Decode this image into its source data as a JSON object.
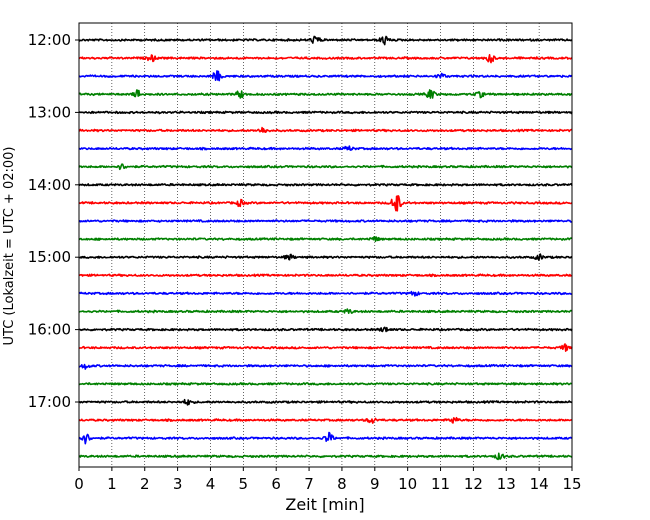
{
  "chart_data": {
    "type": "line",
    "title": "",
    "xlabel": "Zeit  [min]",
    "ylabel": "UTC (Lokalzeit = UTC + 02:00)",
    "xlim": [
      0,
      15
    ],
    "x_ticks": [
      0,
      1,
      2,
      3,
      4,
      5,
      6,
      7,
      8,
      9,
      10,
      11,
      12,
      13,
      14,
      15
    ],
    "x_grid": true,
    "y_ticks": [
      "12:00",
      "13:00",
      "14:00",
      "15:00",
      "16:00",
      "17:00"
    ],
    "trace_interval_min": 15,
    "color_cycle": [
      "#000000",
      "#ff0000",
      "#0000ff",
      "#008000"
    ],
    "traces": [
      {
        "start": "12:00",
        "color": "#000000",
        "events": [
          {
            "t": 7.2,
            "amp": 0.8
          },
          {
            "t": 9.3,
            "amp": 0.9
          }
        ]
      },
      {
        "start": "12:15",
        "color": "#ff0000",
        "events": [
          {
            "t": 2.2,
            "amp": 0.6
          },
          {
            "t": 12.5,
            "amp": 0.9
          }
        ]
      },
      {
        "start": "12:30",
        "color": "#0000ff",
        "events": [
          {
            "t": 4.2,
            "amp": 1.0
          },
          {
            "t": 11.0,
            "amp": 0.5
          }
        ]
      },
      {
        "start": "12:45",
        "color": "#008000",
        "events": [
          {
            "t": 1.8,
            "amp": 0.8
          },
          {
            "t": 4.9,
            "amp": 0.7
          },
          {
            "t": 10.7,
            "amp": 0.9
          },
          {
            "t": 12.2,
            "amp": 0.5
          }
        ]
      },
      {
        "start": "13:00",
        "color": "#000000",
        "events": []
      },
      {
        "start": "13:15",
        "color": "#ff0000",
        "events": [
          {
            "t": 5.6,
            "amp": 0.6
          }
        ]
      },
      {
        "start": "13:30",
        "color": "#0000ff",
        "events": [
          {
            "t": 8.2,
            "amp": 0.4
          }
        ]
      },
      {
        "start": "13:45",
        "color": "#008000",
        "events": [
          {
            "t": 1.3,
            "amp": 0.5
          }
        ]
      },
      {
        "start": "14:00",
        "color": "#000000",
        "events": []
      },
      {
        "start": "14:15",
        "color": "#ff0000",
        "events": [
          {
            "t": 9.65,
            "amp": 2.2
          },
          {
            "t": 4.9,
            "amp": 0.6
          }
        ]
      },
      {
        "start": "14:30",
        "color": "#0000ff",
        "events": []
      },
      {
        "start": "14:45",
        "color": "#008000",
        "events": [
          {
            "t": 9.0,
            "amp": 0.4
          }
        ]
      },
      {
        "start": "15:00",
        "color": "#000000",
        "events": [
          {
            "t": 6.4,
            "amp": 0.5
          },
          {
            "t": 14.0,
            "amp": 0.5
          }
        ]
      },
      {
        "start": "15:15",
        "color": "#ff0000",
        "events": []
      },
      {
        "start": "15:30",
        "color": "#0000ff",
        "events": [
          {
            "t": 10.2,
            "amp": 0.4
          }
        ]
      },
      {
        "start": "15:45",
        "color": "#008000",
        "events": [
          {
            "t": 8.2,
            "amp": 0.4
          }
        ]
      },
      {
        "start": "16:00",
        "color": "#000000",
        "events": [
          {
            "t": 9.3,
            "amp": 0.5
          }
        ]
      },
      {
        "start": "16:15",
        "color": "#ff0000",
        "events": [
          {
            "t": 14.8,
            "amp": 0.6
          }
        ]
      },
      {
        "start": "16:30",
        "color": "#0000ff",
        "events": [
          {
            "t": 0.2,
            "amp": 0.5
          }
        ]
      },
      {
        "start": "16:45",
        "color": "#008000",
        "events": []
      },
      {
        "start": "17:00",
        "color": "#000000",
        "events": [
          {
            "t": 3.3,
            "amp": 0.5
          }
        ]
      },
      {
        "start": "17:15",
        "color": "#ff0000",
        "events": [
          {
            "t": 8.9,
            "amp": 0.6
          },
          {
            "t": 11.4,
            "amp": 0.6
          }
        ]
      },
      {
        "start": "17:30",
        "color": "#0000ff",
        "events": [
          {
            "t": 0.2,
            "amp": 1.0
          },
          {
            "t": 7.6,
            "amp": 1.0
          }
        ]
      },
      {
        "start": "17:45",
        "color": "#008000",
        "events": [
          {
            "t": 12.8,
            "amp": 0.6
          }
        ]
      }
    ]
  }
}
